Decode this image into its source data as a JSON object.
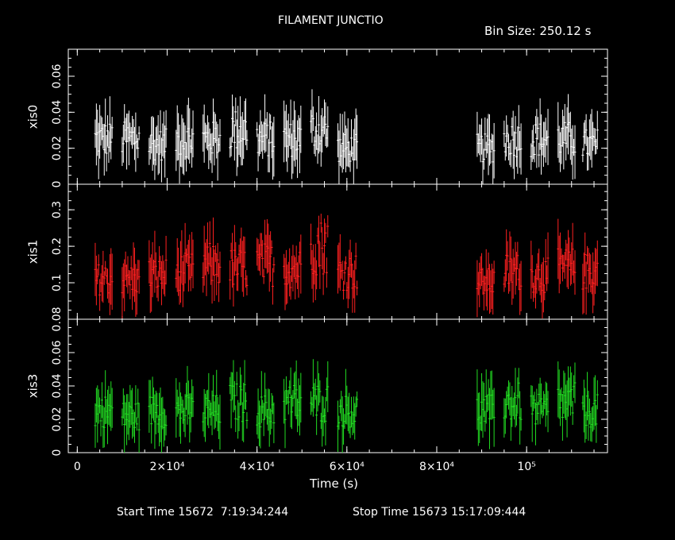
{
  "title": "FILAMENT JUNCTIO",
  "bin_size": "Bin Size: 250.12 s",
  "footer": {
    "start": "Start Time 15672  7:19:34:244",
    "stop": "Stop Time 15673 15:17:09:444"
  },
  "chart_data": {
    "type": "line",
    "xlabel": "Time (s)",
    "xlim": [
      -2000,
      118000
    ],
    "x_ticks": [
      {
        "value": 0,
        "label": "0"
      },
      {
        "value": 20000,
        "label": "2×10⁴"
      },
      {
        "value": 40000,
        "label": "4×10⁴"
      },
      {
        "value": 60000,
        "label": "6×10⁴"
      },
      {
        "value": 80000,
        "label": "8×10⁴"
      },
      {
        "value": 100000,
        "label": "10⁵"
      }
    ],
    "gap": [
      63000,
      88500
    ],
    "panels": [
      {
        "name": "xis0",
        "color": "#ffffff",
        "ylim": [
          0,
          0.075
        ],
        "y_ticks": [
          {
            "value": 0,
            "label": "0"
          },
          {
            "value": 0.02,
            "label": "0.02"
          },
          {
            "value": 0.04,
            "label": "0.04"
          },
          {
            "value": 0.06,
            "label": "0.06"
          }
        ],
        "clusters": [
          {
            "start": 4000,
            "end": 8000,
            "level": 0.025
          },
          {
            "start": 10000,
            "end": 14000,
            "level": 0.025
          },
          {
            "start": 16000,
            "end": 20000,
            "level": 0.022
          },
          {
            "start": 22000,
            "end": 26000,
            "level": 0.025
          },
          {
            "start": 28000,
            "end": 32000,
            "level": 0.025
          },
          {
            "start": 34000,
            "end": 38000,
            "level": 0.03
          },
          {
            "start": 40000,
            "end": 44000,
            "level": 0.025
          },
          {
            "start": 46000,
            "end": 50000,
            "level": 0.025
          },
          {
            "start": 52000,
            "end": 56000,
            "level": 0.03
          },
          {
            "start": 58000,
            "end": 62500,
            "level": 0.02
          },
          {
            "start": 89000,
            "end": 93000,
            "level": 0.02
          },
          {
            "start": 95000,
            "end": 99000,
            "level": 0.025
          },
          {
            "start": 101000,
            "end": 105000,
            "level": 0.025
          },
          {
            "start": 107000,
            "end": 111000,
            "level": 0.025
          },
          {
            "start": 112500,
            "end": 116000,
            "level": 0.022
          }
        ]
      },
      {
        "name": "xis1",
        "color": "#ff2020",
        "ylim": [
          0,
          0.37
        ],
        "y_ticks": [
          {
            "value": 0.1,
            "label": "0.1"
          },
          {
            "value": 0.2,
            "label": "0.2"
          },
          {
            "value": 0.3,
            "label": "0.3"
          }
        ],
        "clusters": [
          {
            "start": 4000,
            "end": 8000,
            "level": 0.11
          },
          {
            "start": 10000,
            "end": 14000,
            "level": 0.11
          },
          {
            "start": 16000,
            "end": 20000,
            "level": 0.12
          },
          {
            "start": 22000,
            "end": 26000,
            "level": 0.13
          },
          {
            "start": 28000,
            "end": 32000,
            "level": 0.15
          },
          {
            "start": 34000,
            "end": 38000,
            "level": 0.14
          },
          {
            "start": 40000,
            "end": 44000,
            "level": 0.15
          },
          {
            "start": 46000,
            "end": 50000,
            "level": 0.14
          },
          {
            "start": 52000,
            "end": 56000,
            "level": 0.2
          },
          {
            "start": 58000,
            "end": 62500,
            "level": 0.13
          },
          {
            "start": 89000,
            "end": 93000,
            "level": 0.1
          },
          {
            "start": 95000,
            "end": 99000,
            "level": 0.13
          },
          {
            "start": 101000,
            "end": 105000,
            "level": 0.12
          },
          {
            "start": 107000,
            "end": 111000,
            "level": 0.14
          },
          {
            "start": 112500,
            "end": 116000,
            "level": 0.13
          }
        ]
      },
      {
        "name": "xis3",
        "color": "#22dd22",
        "ylim": [
          0,
          0.08
        ],
        "y_ticks": [
          {
            "value": 0,
            "label": "0"
          },
          {
            "value": 0.02,
            "label": "0.02"
          },
          {
            "value": 0.04,
            "label": "0.04"
          },
          {
            "value": 0.06,
            "label": "0.06"
          },
          {
            "value": 0.08,
            "label": "0.08"
          }
        ],
        "clusters": [
          {
            "start": 4000,
            "end": 8000,
            "level": 0.025
          },
          {
            "start": 10000,
            "end": 14000,
            "level": 0.022
          },
          {
            "start": 16000,
            "end": 20000,
            "level": 0.025
          },
          {
            "start": 22000,
            "end": 26000,
            "level": 0.025
          },
          {
            "start": 28000,
            "end": 32000,
            "level": 0.025
          },
          {
            "start": 34000,
            "end": 38000,
            "level": 0.03
          },
          {
            "start": 40000,
            "end": 44000,
            "level": 0.025
          },
          {
            "start": 46000,
            "end": 50000,
            "level": 0.03
          },
          {
            "start": 52000,
            "end": 56000,
            "level": 0.03
          },
          {
            "start": 58000,
            "end": 62500,
            "level": 0.025
          },
          {
            "start": 89000,
            "end": 93000,
            "level": 0.025
          },
          {
            "start": 95000,
            "end": 99000,
            "level": 0.03
          },
          {
            "start": 101000,
            "end": 105000,
            "level": 0.025
          },
          {
            "start": 107000,
            "end": 111000,
            "level": 0.03
          },
          {
            "start": 112500,
            "end": 116000,
            "level": 0.025
          }
        ]
      }
    ]
  }
}
